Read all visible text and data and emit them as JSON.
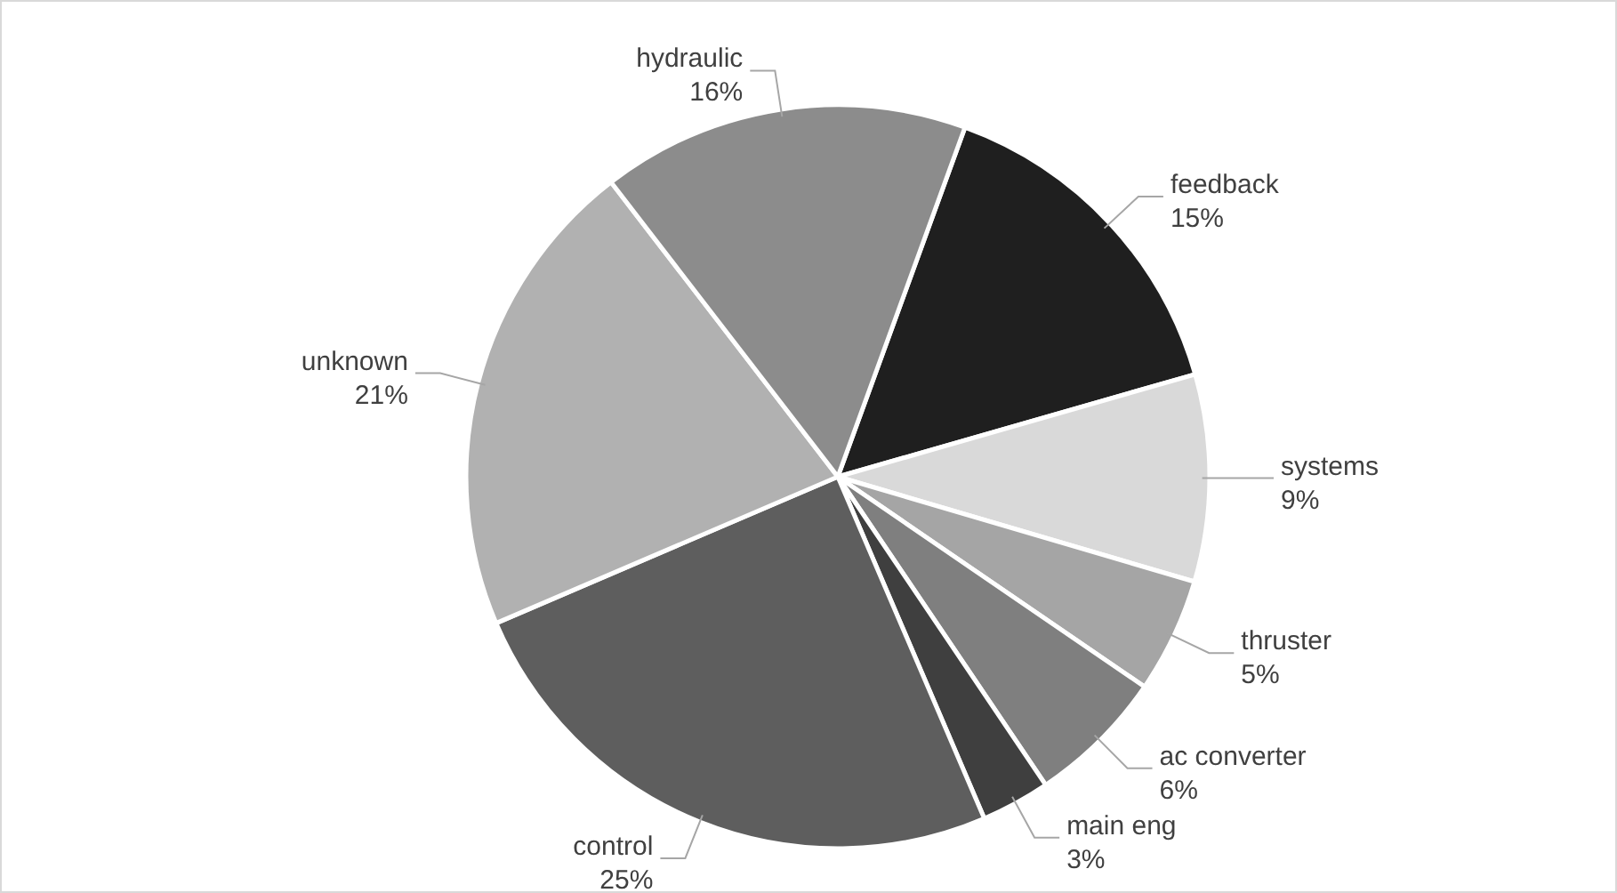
{
  "chart_data": {
    "type": "pie",
    "categories": [
      "feedback",
      "systems",
      "thruster",
      "ac converter",
      "main eng",
      "control",
      "unknown",
      "hydraulic"
    ],
    "values": [
      15,
      9,
      5,
      6,
      3,
      25,
      21,
      16
    ],
    "value_labels": [
      "15%",
      "9%",
      "5%",
      "6%",
      "3%",
      "25%",
      "21%",
      "16%"
    ],
    "colors": [
      "#1f1f1f",
      "#d9d9d9",
      "#a5a5a5",
      "#7f7f7f",
      "#3f3f3f",
      "#5e5e5e",
      "#b1b1b1",
      "#8c8c8c"
    ],
    "legend": false
  }
}
